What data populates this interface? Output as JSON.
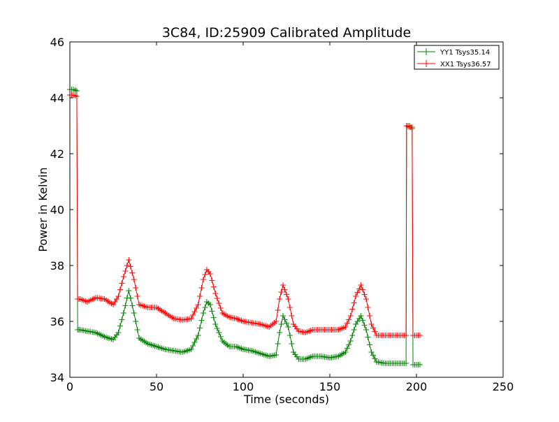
{
  "chart_data": {
    "type": "line",
    "title": "3C84, ID:25909 Calibrated Amplitude",
    "xlabel": "Time (seconds)",
    "ylabel": "Power in Kelvin",
    "xlim": [
      0,
      250
    ],
    "ylim": [
      34,
      46
    ],
    "xticks": [
      0,
      50,
      100,
      150,
      200,
      250
    ],
    "yticks": [
      34,
      36,
      38,
      40,
      42,
      44,
      46
    ],
    "xtick_labels": [
      "0",
      "50",
      "100",
      "150",
      "200",
      "250"
    ],
    "ytick_labels": [
      "34",
      "36",
      "38",
      "40",
      "42",
      "44",
      "46"
    ],
    "grid": false,
    "legend_position": "top-right",
    "marker": "+",
    "series": [
      {
        "name": "YY1 Tsys35.14",
        "color": "#008000",
        "points": [
          [
            0,
            44.3
          ],
          [
            2,
            44.3
          ],
          [
            4,
            44.25
          ],
          [
            4.5,
            35.7
          ],
          [
            6,
            35.7
          ],
          [
            10,
            35.65
          ],
          [
            15,
            35.6
          ],
          [
            20,
            35.45
          ],
          [
            25,
            35.35
          ],
          [
            28,
            35.6
          ],
          [
            31,
            36.3
          ],
          [
            34,
            37.1
          ],
          [
            37,
            36.3
          ],
          [
            40,
            35.4
          ],
          [
            45,
            35.2
          ],
          [
            50,
            35.1
          ],
          [
            55,
            35.0
          ],
          [
            60,
            34.95
          ],
          [
            65,
            34.9
          ],
          [
            70,
            35.0
          ],
          [
            74,
            35.5
          ],
          [
            77,
            36.3
          ],
          [
            79,
            36.7
          ],
          [
            81,
            36.6
          ],
          [
            84,
            35.9
          ],
          [
            88,
            35.3
          ],
          [
            92,
            35.1
          ],
          [
            96,
            35.1
          ],
          [
            100,
            35.0
          ],
          [
            105,
            34.95
          ],
          [
            110,
            34.85
          ],
          [
            115,
            34.75
          ],
          [
            119,
            34.8
          ],
          [
            121,
            35.6
          ],
          [
            123,
            36.2
          ],
          [
            126,
            35.8
          ],
          [
            129,
            34.9
          ],
          [
            132,
            34.65
          ],
          [
            136,
            34.65
          ],
          [
            140,
            34.75
          ],
          [
            145,
            34.75
          ],
          [
            150,
            34.7
          ],
          [
            155,
            34.75
          ],
          [
            159,
            34.9
          ],
          [
            162,
            35.3
          ],
          [
            165,
            35.9
          ],
          [
            168,
            36.2
          ],
          [
            171,
            35.7
          ],
          [
            174,
            34.9
          ],
          [
            177,
            34.55
          ],
          [
            182,
            34.5
          ],
          [
            187,
            34.5
          ],
          [
            192,
            34.5
          ],
          [
            194,
            34.5
          ],
          [
            194.3,
            43.0
          ],
          [
            196,
            43.0
          ],
          [
            197.5,
            42.9
          ],
          [
            198,
            34.45
          ],
          [
            202,
            34.45
          ]
        ]
      },
      {
        "name": "XX1 Tsys36.57",
        "color": "#ff0000",
        "points": [
          [
            0,
            44.1
          ],
          [
            2,
            44.1
          ],
          [
            4,
            44.05
          ],
          [
            4.5,
            36.8
          ],
          [
            6,
            36.8
          ],
          [
            10,
            36.7
          ],
          [
            15,
            36.85
          ],
          [
            20,
            36.8
          ],
          [
            25,
            36.6
          ],
          [
            28,
            36.9
          ],
          [
            31,
            37.6
          ],
          [
            34,
            38.2
          ],
          [
            37,
            37.5
          ],
          [
            40,
            36.6
          ],
          [
            45,
            36.5
          ],
          [
            50,
            36.5
          ],
          [
            55,
            36.3
          ],
          [
            60,
            36.1
          ],
          [
            65,
            36.05
          ],
          [
            70,
            36.1
          ],
          [
            74,
            36.6
          ],
          [
            77,
            37.5
          ],
          [
            79,
            37.85
          ],
          [
            81,
            37.7
          ],
          [
            84,
            37.0
          ],
          [
            88,
            36.3
          ],
          [
            92,
            36.15
          ],
          [
            96,
            36.1
          ],
          [
            100,
            36.0
          ],
          [
            105,
            35.95
          ],
          [
            110,
            35.9
          ],
          [
            115,
            35.8
          ],
          [
            119,
            36.0
          ],
          [
            121,
            36.8
          ],
          [
            123,
            37.3
          ],
          [
            126,
            36.8
          ],
          [
            129,
            35.9
          ],
          [
            132,
            35.65
          ],
          [
            136,
            35.6
          ],
          [
            140,
            35.7
          ],
          [
            145,
            35.7
          ],
          [
            150,
            35.7
          ],
          [
            155,
            35.7
          ],
          [
            159,
            35.8
          ],
          [
            162,
            36.2
          ],
          [
            165,
            36.9
          ],
          [
            168,
            37.3
          ],
          [
            171,
            36.8
          ],
          [
            174,
            35.9
          ],
          [
            177,
            35.5
          ],
          [
            182,
            35.5
          ],
          [
            187,
            35.5
          ],
          [
            192,
            35.5
          ],
          [
            194,
            35.5
          ],
          [
            194.3,
            43.0
          ],
          [
            196,
            42.95
          ],
          [
            197.5,
            42.95
          ],
          [
            198,
            35.5
          ],
          [
            202,
            35.5
          ]
        ]
      }
    ]
  }
}
